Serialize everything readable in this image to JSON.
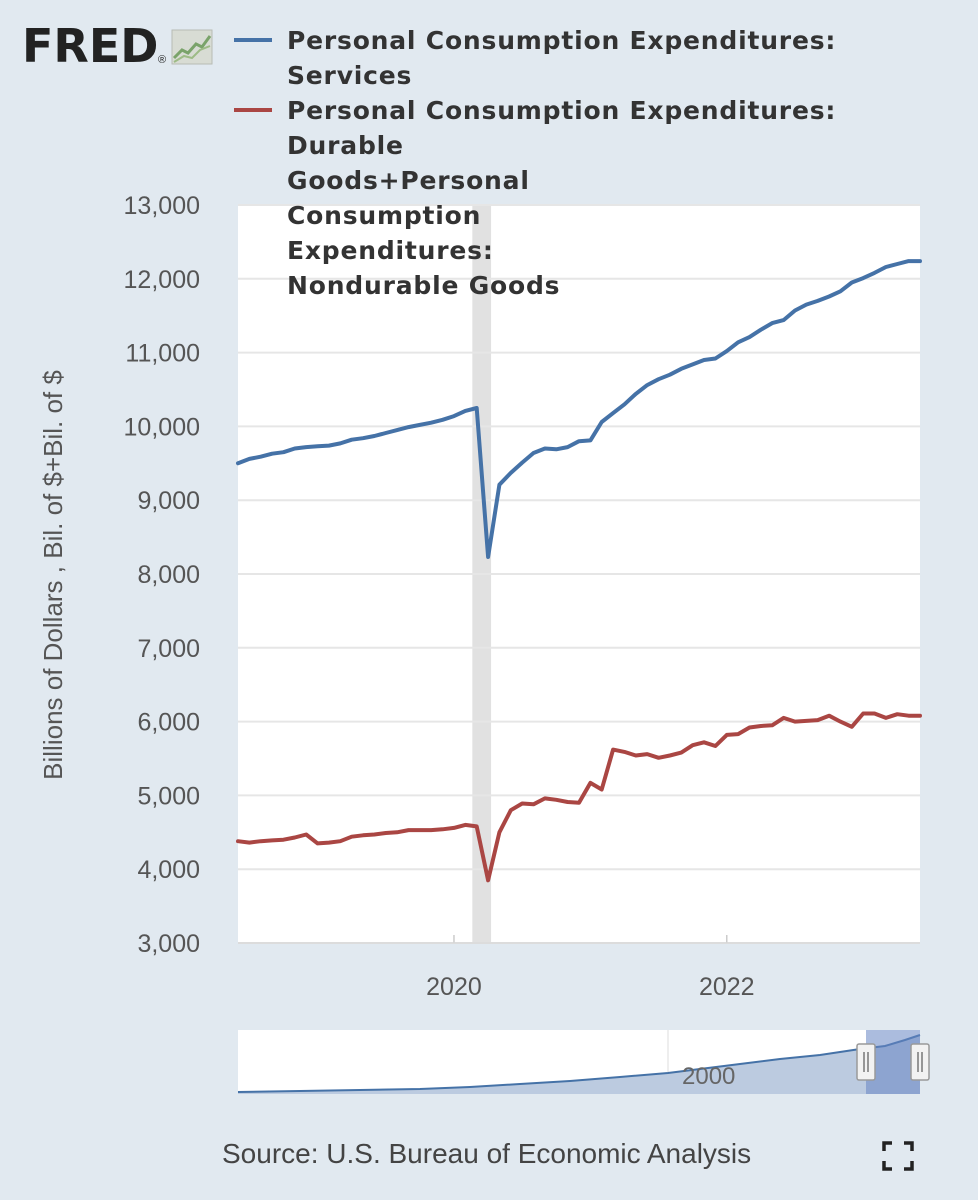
{
  "brand": {
    "logo_text": "FRED",
    "registered": "®"
  },
  "chart_data": {
    "type": "line",
    "ylabel": "Billions of Dollars , Bil. of $+Bil. of $",
    "ylim": [
      3000,
      13000
    ],
    "yticks": [
      3000,
      4000,
      5000,
      6000,
      7000,
      8000,
      9000,
      10000,
      11000,
      12000,
      13000
    ],
    "ytick_labels": [
      "3,000",
      "4,000",
      "5,000",
      "6,000",
      "7,000",
      "8,000",
      "9,000",
      "10,000",
      "11,000",
      "12,000",
      "13,000"
    ],
    "xlim": [
      "2018-06",
      "2023-06"
    ],
    "xticks": [
      "2020-01",
      "2022-01"
    ],
    "xtick_labels": [
      "2020",
      "2022"
    ],
    "grid": "horizontal",
    "recession": {
      "start": "2020-02",
      "end": "2020-04"
    },
    "legend_position": "top",
    "x": [
      "2018-06",
      "2018-07",
      "2018-08",
      "2018-09",
      "2018-10",
      "2018-11",
      "2018-12",
      "2019-01",
      "2019-02",
      "2019-03",
      "2019-04",
      "2019-05",
      "2019-06",
      "2019-07",
      "2019-08",
      "2019-09",
      "2019-10",
      "2019-11",
      "2019-12",
      "2020-01",
      "2020-02",
      "2020-03",
      "2020-04",
      "2020-05",
      "2020-06",
      "2020-07",
      "2020-08",
      "2020-09",
      "2020-10",
      "2020-11",
      "2020-12",
      "2021-01",
      "2021-02",
      "2021-03",
      "2021-04",
      "2021-05",
      "2021-06",
      "2021-07",
      "2021-08",
      "2021-09",
      "2021-10",
      "2021-11",
      "2021-12",
      "2022-01",
      "2022-02",
      "2022-03",
      "2022-04",
      "2022-05",
      "2022-06",
      "2022-07",
      "2022-08",
      "2022-09",
      "2022-10",
      "2022-11",
      "2022-12",
      "2023-01",
      "2023-02",
      "2023-03",
      "2023-04",
      "2023-05",
      "2023-06"
    ],
    "series": [
      {
        "name": "Personal Consumption Expenditures: Services",
        "color": "#4572a7",
        "values": [
          9500,
          9560,
          9590,
          9630,
          9650,
          9700,
          9720,
          9730,
          9740,
          9770,
          9820,
          9840,
          9870,
          9910,
          9950,
          9990,
          10020,
          10050,
          10090,
          10140,
          10210,
          10250,
          8230,
          9210,
          9370,
          9510,
          9640,
          9700,
          9690,
          9720,
          9800,
          9810,
          10060,
          10180,
          10300,
          10440,
          10560,
          10640,
          10700,
          10780,
          10840,
          10900,
          10920,
          11020,
          11140,
          11210,
          11310,
          11400,
          11440,
          11570,
          11650,
          11700,
          11760,
          11830,
          11950,
          12010,
          12080,
          12160,
          12200,
          12240,
          12240
        ]
      },
      {
        "name": "Personal Consumption Expenditures: Durable Goods+Personal Consumption Expenditures: Nondurable Goods",
        "color": "#aa4643",
        "values": [
          4380,
          4360,
          4380,
          4390,
          4400,
          4430,
          4470,
          4350,
          4360,
          4380,
          4440,
          4460,
          4470,
          4490,
          4500,
          4530,
          4530,
          4530,
          4540,
          4560,
          4600,
          4580,
          3850,
          4500,
          4800,
          4890,
          4880,
          4960,
          4940,
          4910,
          4900,
          5170,
          5080,
          5620,
          5590,
          5540,
          5560,
          5510,
          5540,
          5580,
          5680,
          5720,
          5670,
          5820,
          5830,
          5920,
          5940,
          5950,
          6050,
          6000,
          6010,
          6020,
          6080,
          6000,
          5930,
          6110,
          6110,
          6050,
          6100,
          6080,
          6080
        ]
      }
    ]
  },
  "navigator": {
    "year_label": "2000"
  },
  "footer": {
    "source": "Source: U.S. Bureau of Economic Analysis",
    "fullscreen_icon": "expand-icon"
  }
}
